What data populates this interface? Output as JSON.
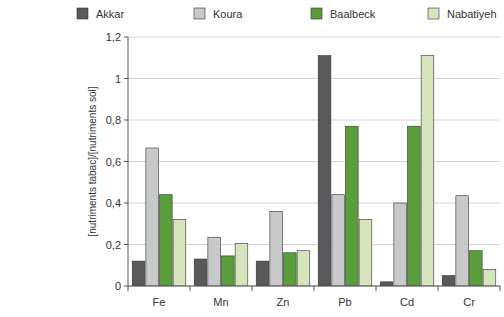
{
  "chart_data": {
    "type": "bar",
    "y_label": "[nutriments tabac]/[nutriments sol]",
    "categories": [
      "Fe",
      "Mn",
      "Zn",
      "Pb",
      "Cd",
      "Cr"
    ],
    "series": [
      {
        "name": "Akkar",
        "color": "#58595b",
        "values": [
          0.12,
          0.13,
          0.12,
          1.11,
          0.02,
          0.05
        ]
      },
      {
        "name": "Koura",
        "color": "#c8c9cb",
        "values": [
          0.665,
          0.235,
          0.36,
          0.44,
          0.4,
          0.435
        ]
      },
      {
        "name": "Baalbeck",
        "color": "#5a9e3c",
        "values": [
          0.44,
          0.145,
          0.16,
          0.77,
          0.77,
          0.17
        ]
      },
      {
        "name": "Nabatiyeh",
        "color": "#d6e4bc",
        "values": [
          0.32,
          0.205,
          0.17,
          0.32,
          1.11,
          0.08
        ]
      }
    ],
    "ylim": [
      0,
      1.2
    ],
    "yticks": [
      0,
      {
        "value": 0.2,
        "label": "0,2"
      },
      {
        "value": 0.4,
        "label": "0,4"
      },
      {
        "value": 0.6,
        "label": "0,6"
      },
      {
        "value": 0.8,
        "label": "0,8"
      },
      1,
      {
        "value": 1.2,
        "label": "1,2"
      }
    ],
    "grid": true,
    "legend": "top"
  }
}
